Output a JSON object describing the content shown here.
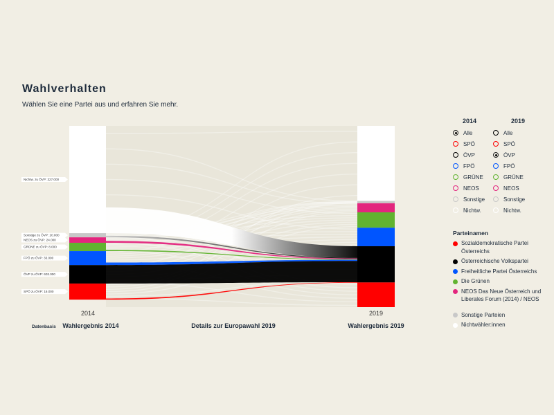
{
  "header": {
    "title": "Wahlverhalten",
    "subtitle": "Wählen Sie eine Partei aus und erfahren Sie mehr."
  },
  "chart_data": {
    "type": "sankey",
    "left_year": "2014",
    "right_year": "2019",
    "bottom_labels": {
      "basis": "Datenbasis",
      "left": "Wahlergebnis 2014",
      "center": "Details zur Europawahl 2019",
      "right": "Wahlergebnis 2019"
    },
    "target_party": "ÖVP",
    "nodes_2014": [
      {
        "party": "Nichtw.",
        "color": "#ffffff",
        "share": 0.592
      },
      {
        "party": "Sonstige",
        "color": "#c8c8c8",
        "share": 0.023
      },
      {
        "party": "NEOS",
        "color": "#e3257e",
        "share": 0.03
      },
      {
        "party": "GRÜNE",
        "color": "#61b330",
        "share": 0.046
      },
      {
        "party": "FPÖ",
        "color": "#0055ff",
        "share": 0.077
      },
      {
        "party": "ÖVP",
        "color": "#000000",
        "share": 0.102
      },
      {
        "party": "SPÖ",
        "color": "#ff0000",
        "share": 0.089
      }
    ],
    "nodes_2019": [
      {
        "party": "Nichtw.",
        "color": "#ffffff",
        "share": 0.414
      },
      {
        "party": "Sonstige",
        "color": "#c8c8c8",
        "share": 0.013
      },
      {
        "party": "NEOS",
        "color": "#e3257e",
        "share": 0.05
      },
      {
        "party": "GRÜNE",
        "color": "#61b330",
        "share": 0.085
      },
      {
        "party": "FPÖ",
        "color": "#0055ff",
        "share": 0.102
      },
      {
        "party": "ÖVP",
        "color": "#000000",
        "share": 0.2
      },
      {
        "party": "SPÖ",
        "color": "#ff0000",
        "share": 0.136
      }
    ],
    "flows_to_target": [
      {
        "from": "Nichtw.",
        "label": "Nichtw. zu ÖVP: 327.000",
        "value": 327000,
        "color": "#ffffff"
      },
      {
        "from": "Sonstige",
        "label": "Sonstige zu ÖVP: 20.000",
        "value": 20000,
        "color": "#c8c8c8"
      },
      {
        "from": "NEOS",
        "label": "NEOS zu ÖVP: 24.000",
        "value": 24000,
        "color": "#e3257e"
      },
      {
        "from": "GRÜNE",
        "label": "GRÜNE zu ÖVP: 8.000",
        "value": 8000,
        "color": "#61b330"
      },
      {
        "from": "FPÖ",
        "label": "FPÖ zu ÖVP: 33.000",
        "value": 33000,
        "color": "#0055ff"
      },
      {
        "from": "ÖVP",
        "label": "ÖVP zu ÖVP: 603.000",
        "value": 603000,
        "color": "#000000"
      },
      {
        "from": "SPÖ",
        "label": "SPÖ zu ÖVP: 16.000",
        "value": 16000,
        "color": "#ff0000"
      }
    ]
  },
  "selector": {
    "col_2014": "2014",
    "col_2019": "2019",
    "rows": [
      {
        "label": "Alle",
        "color": "#000000",
        "on2014": true,
        "on2019": false
      },
      {
        "label": "SPÖ",
        "color": "#ff0000",
        "on2014": false,
        "on2019": false
      },
      {
        "label": "ÖVP",
        "color": "#000000",
        "on2014": false,
        "on2019": true
      },
      {
        "label": "FPÖ",
        "color": "#0055ff",
        "on2014": false,
        "on2019": false
      },
      {
        "label": "GRÜNE",
        "color": "#61b330",
        "on2014": false,
        "on2019": false
      },
      {
        "label": "NEOS",
        "color": "#e3257e",
        "on2014": false,
        "on2019": false
      },
      {
        "label": "Sonstige",
        "color": "#c8c8c8",
        "on2014": false,
        "on2019": false
      },
      {
        "label": "Nichtw.",
        "color": "#ffffff",
        "on2014": false,
        "on2019": false
      }
    ]
  },
  "legend": {
    "title": "Parteinamen",
    "items": [
      {
        "label": "Sozialdemokratische Partei Österreichs",
        "color": "#ff0000"
      },
      {
        "label": "Österreichische Volkspartei",
        "color": "#000000"
      },
      {
        "label": "Freiheitliche Partei Österreichs",
        "color": "#0055ff"
      },
      {
        "label": "Die Grünen",
        "color": "#61b330"
      },
      {
        "label": "NEOS Das Neue Österreich und Liberales Forum (2014) / NEOS",
        "color": "#e3257e"
      }
    ],
    "extra": [
      {
        "label": "Sonstige Parteien",
        "color": "#c8c8c8"
      },
      {
        "label": "Nichtwähler:innen",
        "color": "#ffffff"
      }
    ]
  }
}
